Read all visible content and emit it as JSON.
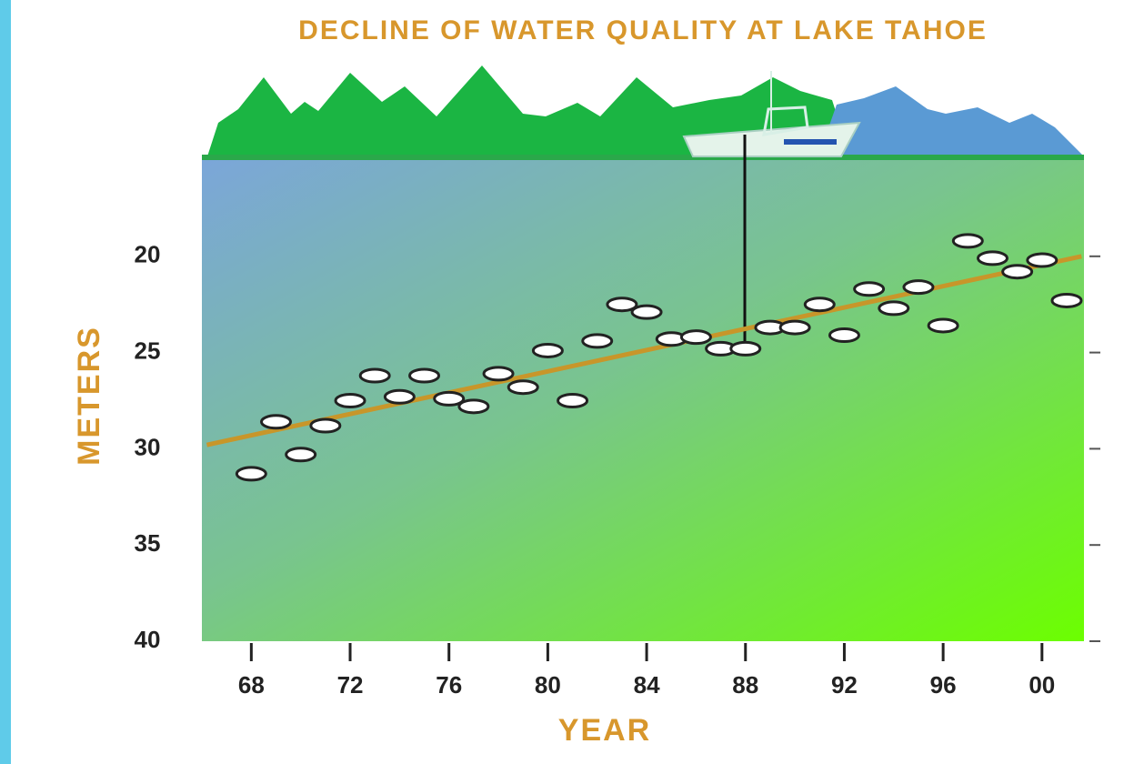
{
  "chart_data": {
    "type": "scatter",
    "title": "DECLINE OF WATER QUALITY AT LAKE TAHOE",
    "x_label": "YEAR",
    "y_label": "METERS",
    "x": [
      1968,
      1969,
      1970,
      1971,
      1972,
      1973,
      1974,
      1975,
      1976,
      1977,
      1978,
      1979,
      1980,
      1981,
      1982,
      1983,
      1984,
      1985,
      1986,
      1987,
      1988,
      1989,
      1990,
      1991,
      1992,
      1993,
      1994,
      1995,
      1996,
      1997,
      1998,
      1999,
      2000,
      2001
    ],
    "values": [
      31.3,
      28.6,
      30.3,
      28.8,
      27.5,
      26.2,
      27.3,
      26.2,
      27.4,
      27.8,
      26.1,
      26.8,
      24.9,
      27.5,
      24.4,
      22.5,
      22.9,
      24.3,
      24.2,
      24.8,
      24.8,
      23.7,
      23.7,
      22.5,
      24.1,
      21.7,
      22.7,
      21.6,
      23.6,
      19.2,
      20.1,
      20.8,
      20.2,
      22.3
    ],
    "color": "#ffffff",
    "trend": {
      "x": [
        1966.2,
        2001.6
      ],
      "values": [
        29.8,
        20.0
      ],
      "color": "#c8962a"
    },
    "xlim": [
      1966,
      2001.7
    ],
    "ylim": [
      40,
      15
    ],
    "xticks": [
      {
        "value": 1968,
        "label": "68"
      },
      {
        "value": 1972,
        "label": "72"
      },
      {
        "value": 1976,
        "label": "76"
      },
      {
        "value": 1980,
        "label": "80"
      },
      {
        "value": 1984,
        "label": "84"
      },
      {
        "value": 1988,
        "label": "88"
      },
      {
        "value": 1992,
        "label": "92"
      },
      {
        "value": 1996,
        "label": "96"
      },
      {
        "value": 2000,
        "label": "00"
      }
    ],
    "yticks": [
      20,
      25,
      30,
      35,
      40
    ]
  }
}
